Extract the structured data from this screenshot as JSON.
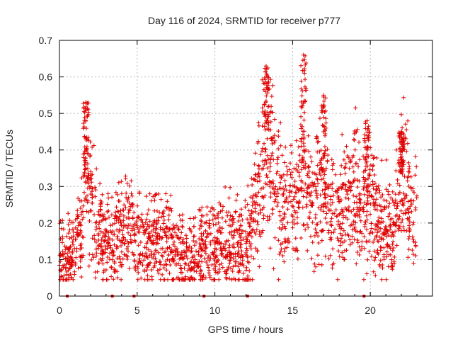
{
  "chart_data": {
    "type": "scatter",
    "title": "Day 116 of 2024, SRMTID for receiver p777",
    "xlabel": "GPS time / hours",
    "ylabel": "SRMTID / TECUs",
    "xlim": [
      0,
      24
    ],
    "ylim": [
      0,
      0.7
    ],
    "xticks": [
      0,
      5,
      10,
      15,
      20
    ],
    "xtick_labels": [
      "0",
      "5",
      "10",
      "15",
      "20"
    ],
    "yticks": [
      0,
      0.1,
      0.2,
      0.3,
      0.4,
      0.5,
      0.6,
      0.7
    ],
    "ytick_labels": [
      "0",
      "0.1",
      "0.2",
      "0.3",
      "0.4",
      "0.5",
      "0.6",
      "0.7"
    ],
    "grid": true,
    "marker": "plus",
    "marker_color": "#e00000",
    "data_span_hours": [
      0,
      23
    ],
    "zero_line_marks_x": [
      0.5,
      3.4,
      4.8,
      9.3,
      12.1,
      19.6
    ],
    "notable_peaks": [
      {
        "x": 1.7,
        "y": 0.53
      },
      {
        "x": 13.3,
        "y": 0.63
      },
      {
        "x": 15.7,
        "y": 0.66
      },
      {
        "x": 17.0,
        "y": 0.55
      },
      {
        "x": 19.8,
        "y": 0.48
      },
      {
        "x": 22.0,
        "y": 0.45
      }
    ],
    "envelope": [
      {
        "x": 0.0,
        "y": 0.13
      },
      {
        "x": 0.5,
        "y": 0.1
      },
      {
        "x": 1.0,
        "y": 0.13
      },
      {
        "x": 1.5,
        "y": 0.2
      },
      {
        "x": 1.7,
        "y": 0.32
      },
      {
        "x": 2.0,
        "y": 0.27
      },
      {
        "x": 2.5,
        "y": 0.18
      },
      {
        "x": 3.0,
        "y": 0.16
      },
      {
        "x": 3.5,
        "y": 0.14
      },
      {
        "x": 4.0,
        "y": 0.18
      },
      {
        "x": 4.3,
        "y": 0.22
      },
      {
        "x": 5.0,
        "y": 0.15
      },
      {
        "x": 6.0,
        "y": 0.14
      },
      {
        "x": 7.0,
        "y": 0.16
      },
      {
        "x": 7.5,
        "y": 0.12
      },
      {
        "x": 8.0,
        "y": 0.09
      },
      {
        "x": 9.0,
        "y": 0.12
      },
      {
        "x": 10.0,
        "y": 0.13
      },
      {
        "x": 11.0,
        "y": 0.15
      },
      {
        "x": 12.0,
        "y": 0.12
      },
      {
        "x": 12.5,
        "y": 0.22
      },
      {
        "x": 13.0,
        "y": 0.33
      },
      {
        "x": 13.3,
        "y": 0.45
      },
      {
        "x": 13.8,
        "y": 0.32
      },
      {
        "x": 14.5,
        "y": 0.23
      },
      {
        "x": 15.0,
        "y": 0.24
      },
      {
        "x": 15.7,
        "y": 0.34
      },
      {
        "x": 16.0,
        "y": 0.26
      },
      {
        "x": 16.5,
        "y": 0.27
      },
      {
        "x": 17.0,
        "y": 0.28
      },
      {
        "x": 17.5,
        "y": 0.22
      },
      {
        "x": 18.0,
        "y": 0.24
      },
      {
        "x": 18.5,
        "y": 0.27
      },
      {
        "x": 19.0,
        "y": 0.3
      },
      {
        "x": 19.5,
        "y": 0.26
      },
      {
        "x": 20.0,
        "y": 0.27
      },
      {
        "x": 20.5,
        "y": 0.2
      },
      {
        "x": 21.0,
        "y": 0.19
      },
      {
        "x": 21.5,
        "y": 0.18
      },
      {
        "x": 22.0,
        "y": 0.34
      },
      {
        "x": 22.5,
        "y": 0.25
      },
      {
        "x": 23.0,
        "y": 0.21
      }
    ]
  }
}
